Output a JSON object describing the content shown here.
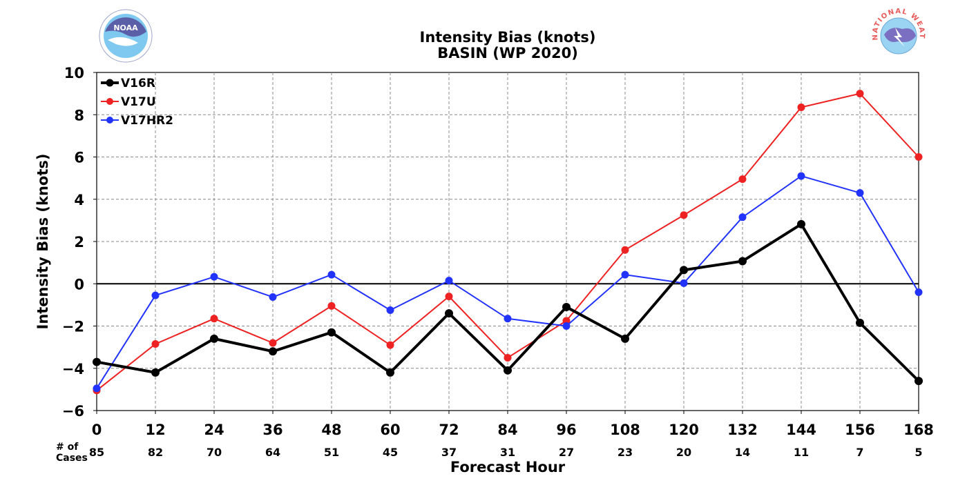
{
  "chart_data": {
    "type": "line",
    "title": "Intensity Bias (knots)",
    "subtitle": "BASIN (WP 2020)",
    "xlabel": "Forecast Hour",
    "ylabel": "Intensity Bias (knots)",
    "x": [
      0,
      12,
      24,
      36,
      48,
      60,
      72,
      84,
      96,
      108,
      120,
      132,
      144,
      156,
      168
    ],
    "xlim": [
      0,
      168
    ],
    "ylim": [
      -6,
      10
    ],
    "yticks": [
      -6,
      -4,
      -2,
      0,
      2,
      4,
      6,
      8,
      10
    ],
    "grid": true,
    "legend_position": "top-left",
    "cases_label": "# of\nCases",
    "cases": [
      85,
      82,
      70,
      64,
      51,
      45,
      37,
      31,
      27,
      23,
      20,
      14,
      11,
      7,
      5
    ],
    "series": [
      {
        "name": "V16R",
        "color": "#000000",
        "values": [
          -3.7,
          -4.2,
          -2.6,
          -3.2,
          -2.3,
          -4.2,
          -1.4,
          -4.1,
          -1.1,
          -2.6,
          0.65,
          1.07,
          2.82,
          -1.85,
          -4.6
        ]
      },
      {
        "name": "V17U",
        "color": "#ee2222",
        "values": [
          -5.05,
          -2.85,
          -1.65,
          -2.8,
          -1.05,
          -2.9,
          -0.6,
          -3.5,
          -1.75,
          1.6,
          3.25,
          4.95,
          8.35,
          9.0,
          6.0
        ]
      },
      {
        "name": "V17HR2",
        "color": "#2233ff",
        "values": [
          -4.95,
          -0.55,
          0.33,
          -0.63,
          0.43,
          -1.25,
          0.15,
          -1.65,
          -2.0,
          0.43,
          0.03,
          3.15,
          5.1,
          4.3,
          -0.4
        ]
      }
    ]
  },
  "logos": {
    "noaa": {
      "name": "noaa-logo",
      "text": "NOAA"
    },
    "nws": {
      "name": "nws-logo",
      "text": "NATIONAL WEATHER SERVICE"
    }
  }
}
